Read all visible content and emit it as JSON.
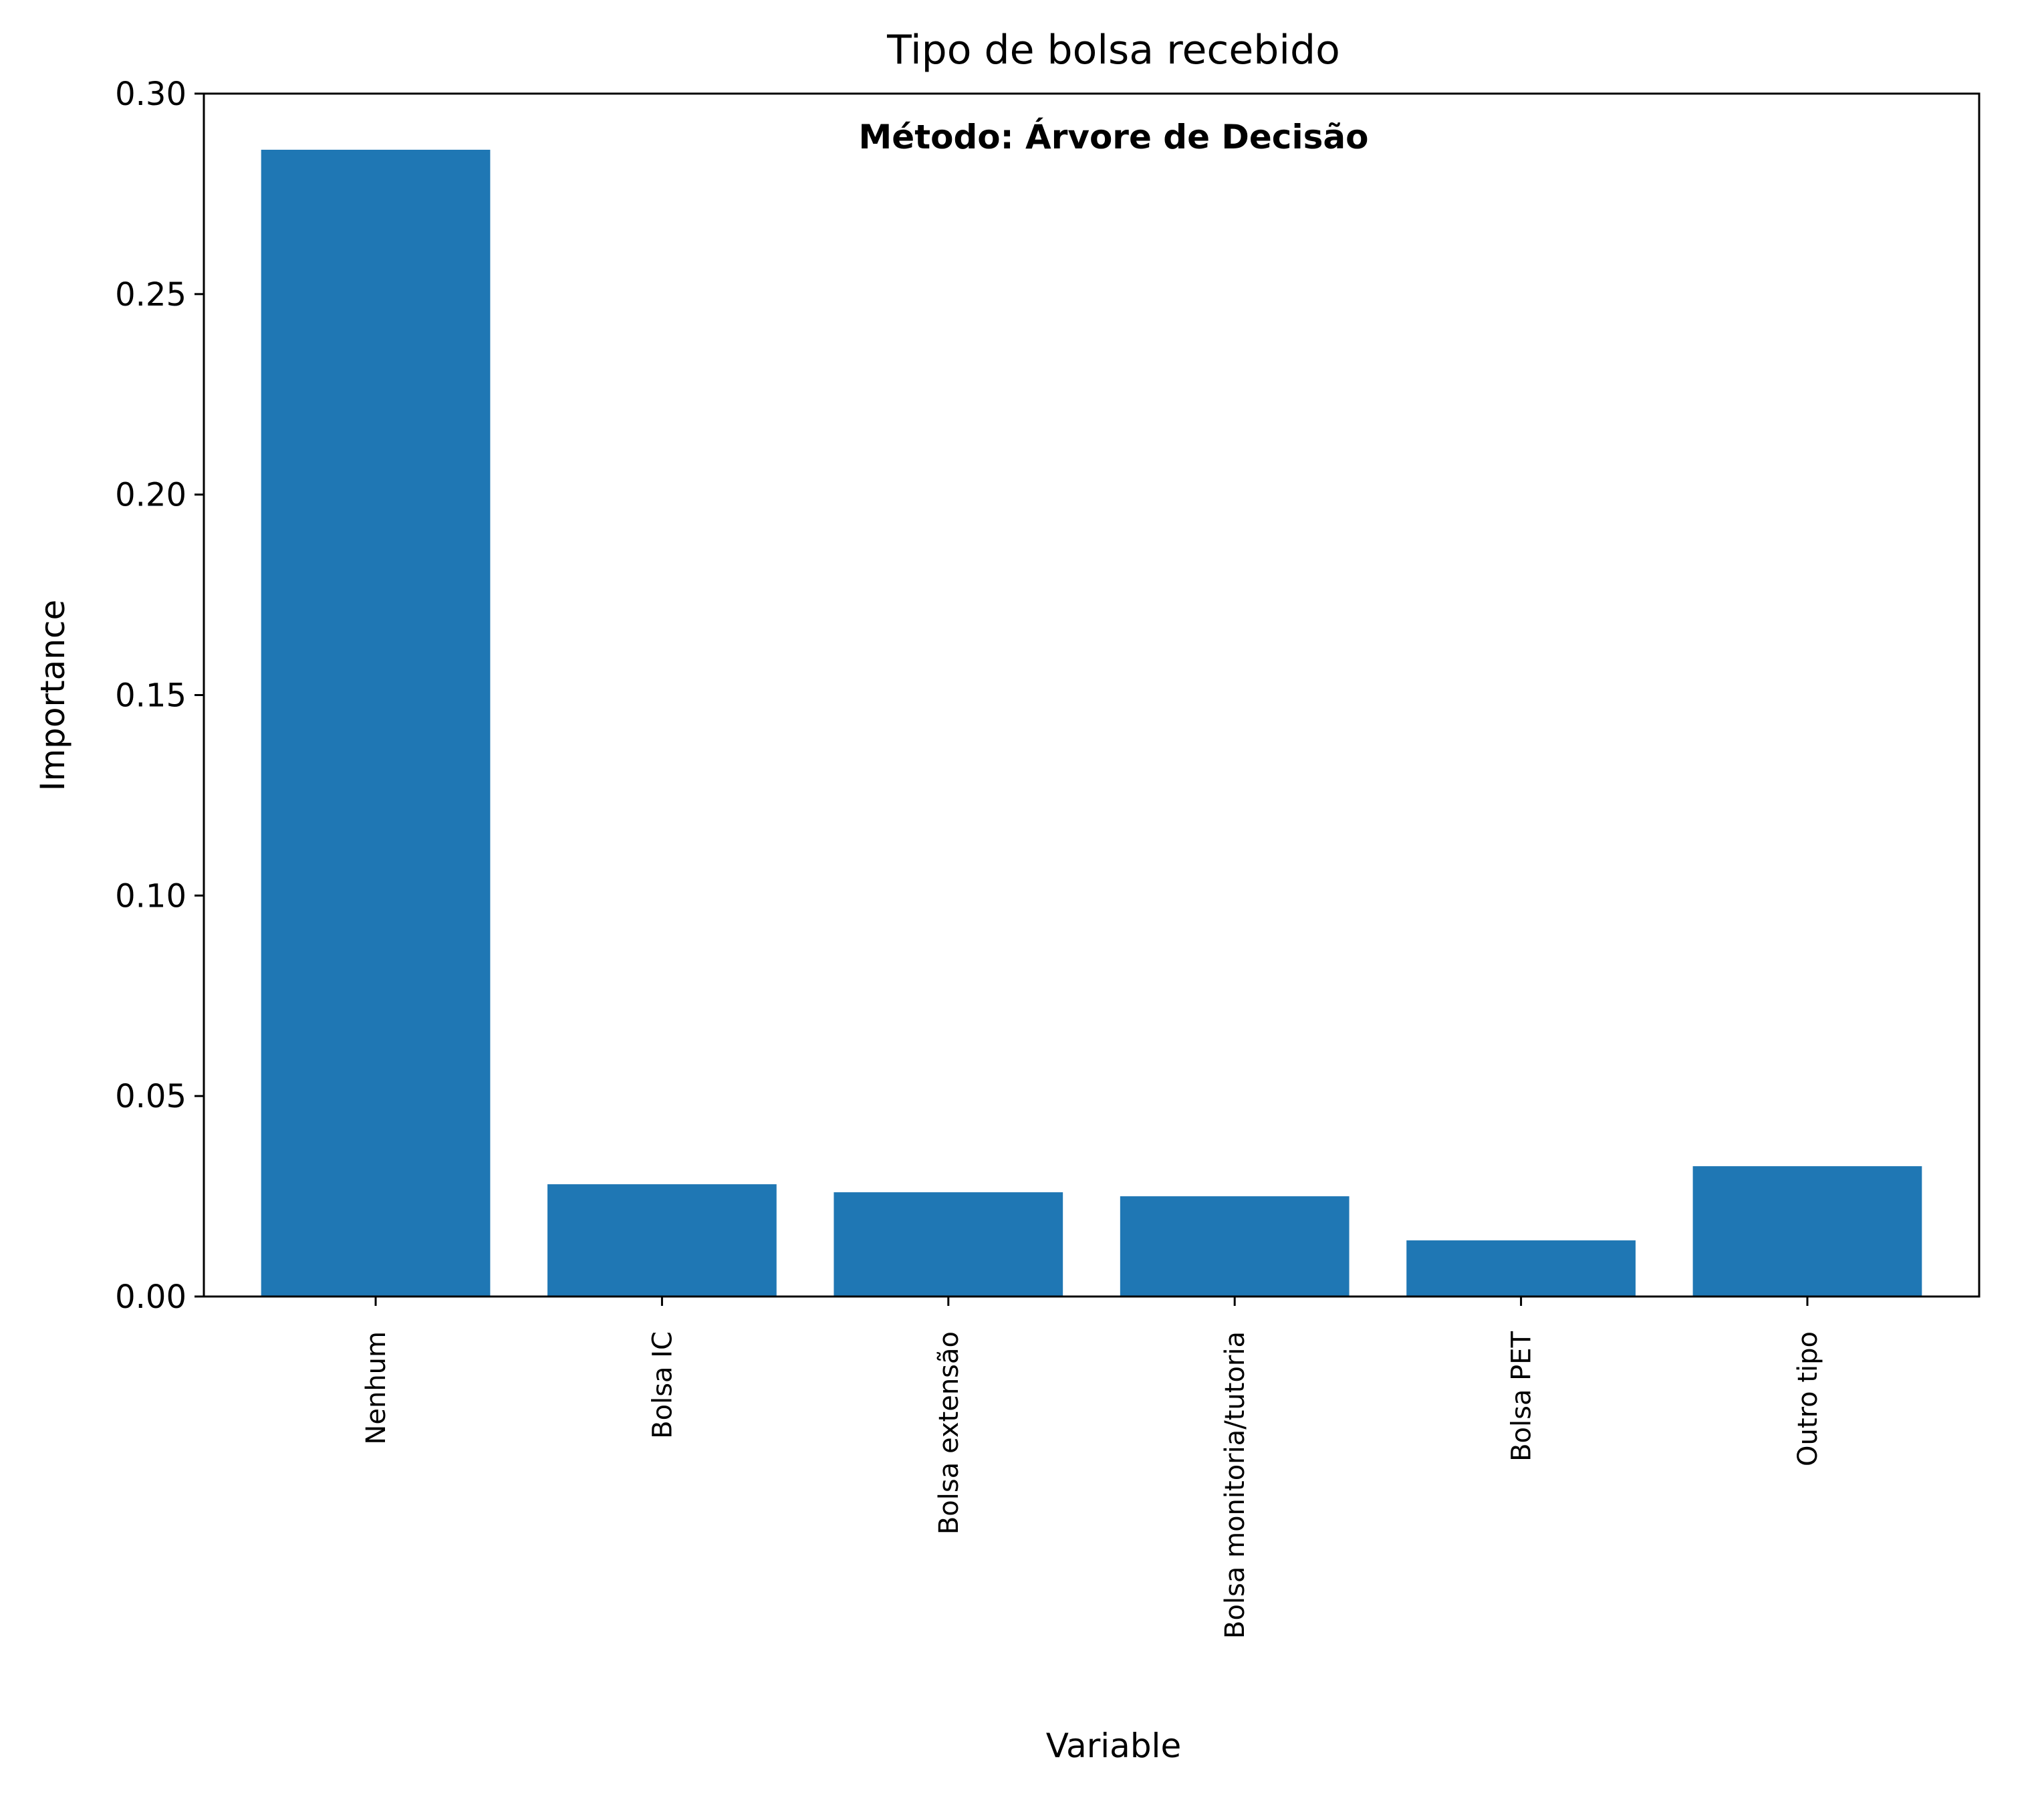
{
  "chart_data": {
    "type": "bar",
    "title": "Tipo de bolsa recebido",
    "annotation": "Método: Árvore de Decisão",
    "xlabel": "Variable",
    "ylabel": "Importance",
    "categories": [
      "Nenhum",
      "Bolsa IC",
      "Bolsa extensão",
      "Bolsa monitoria/tutoria",
      "Bolsa PET",
      "Outro tipo"
    ],
    "values": [
      0.286,
      0.028,
      0.026,
      0.025,
      0.014,
      0.0325
    ],
    "ylim": [
      0,
      0.3
    ],
    "yticks": [
      "0.00",
      "0.05",
      "0.10",
      "0.15",
      "0.20",
      "0.25",
      "0.30"
    ],
    "grid": false,
    "bar_color": "#1f77b4"
  }
}
